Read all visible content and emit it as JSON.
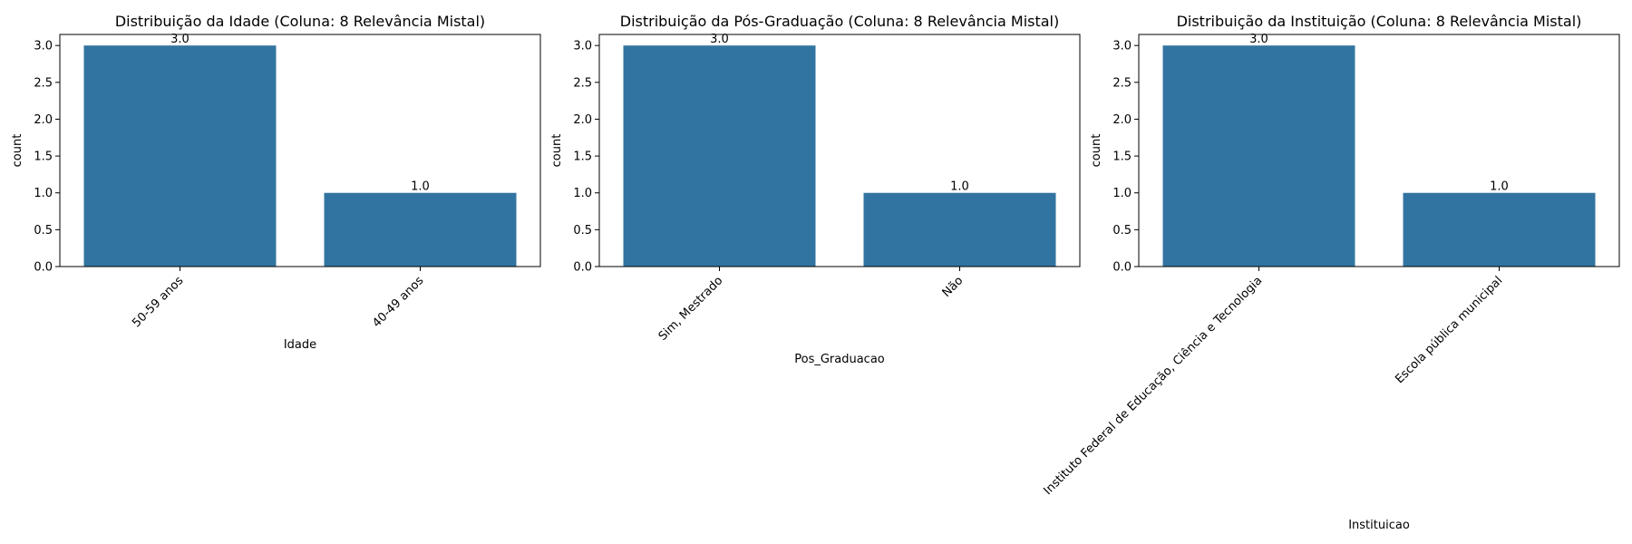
{
  "colors": {
    "bar": "#3274a1",
    "axes": "#000000",
    "background": "#ffffff"
  },
  "chart_data": [
    {
      "type": "bar",
      "title": "Distribuição da Idade (Coluna: 8 Relevância Mistal)",
      "xlabel": "Idade",
      "ylabel": "count",
      "categories": [
        "50-59 anos",
        "40-49 anos"
      ],
      "values": [
        3.0,
        1.0
      ],
      "bar_labels": [
        "3.0",
        "1.0"
      ],
      "ylim": [
        0,
        3.15
      ],
      "yticks": [
        0.0,
        0.5,
        1.0,
        1.5,
        2.0,
        2.5,
        3.0
      ],
      "ytick_labels": [
        "0.0",
        "0.5",
        "1.0",
        "1.5",
        "2.0",
        "2.5",
        "3.0"
      ],
      "xtick_rotation": 45,
      "grid": false,
      "legend": "none"
    },
    {
      "type": "bar",
      "title": "Distribuição da Pós-Graduação (Coluna: 8 Relevância Mistal)",
      "xlabel": "Pos_Graduacao",
      "ylabel": "count",
      "categories": [
        "Sim, Mestrado",
        "Não"
      ],
      "values": [
        3.0,
        1.0
      ],
      "bar_labels": [
        "3.0",
        "1.0"
      ],
      "ylim": [
        0,
        3.15
      ],
      "yticks": [
        0.0,
        0.5,
        1.0,
        1.5,
        2.0,
        2.5,
        3.0
      ],
      "ytick_labels": [
        "0.0",
        "0.5",
        "1.0",
        "1.5",
        "2.0",
        "2.5",
        "3.0"
      ],
      "xtick_rotation": 45,
      "grid": false,
      "legend": "none"
    },
    {
      "type": "bar",
      "title": "Distribuição da Instituição (Coluna: 8 Relevância Mistal)",
      "xlabel": "Instituicao",
      "ylabel": "count",
      "categories": [
        "Instituto Federal de Educação, Ciência e Tecnologia",
        "Escola pública municipal"
      ],
      "values": [
        3.0,
        1.0
      ],
      "bar_labels": [
        "3.0",
        "1.0"
      ],
      "ylim": [
        0,
        3.15
      ],
      "yticks": [
        0.0,
        0.5,
        1.0,
        1.5,
        2.0,
        2.5,
        3.0
      ],
      "ytick_labels": [
        "0.0",
        "0.5",
        "1.0",
        "1.5",
        "2.0",
        "2.5",
        "3.0"
      ],
      "xtick_rotation": 45,
      "grid": false,
      "legend": "none"
    }
  ]
}
